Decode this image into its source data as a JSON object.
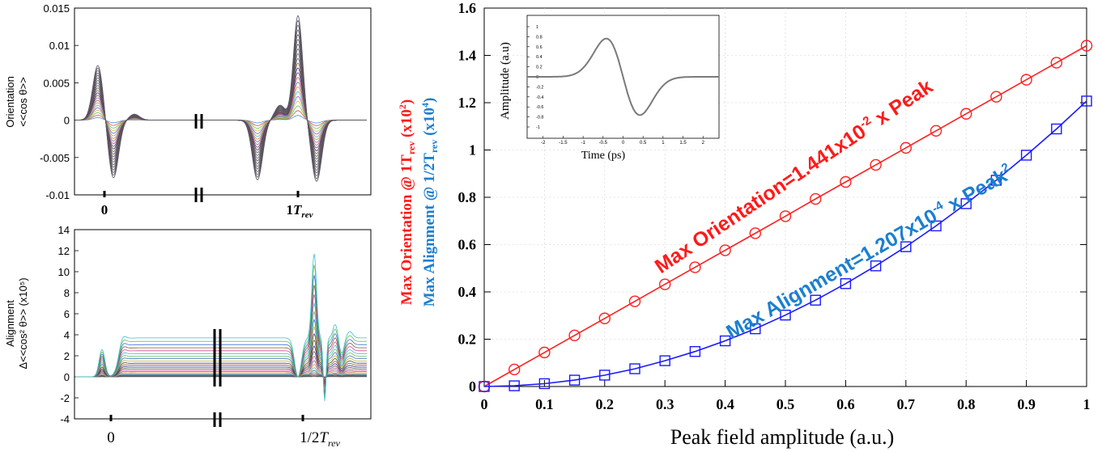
{
  "chart_data": [
    {
      "type": "line",
      "panel": "orientation",
      "ylabel_line1": "Orientation",
      "ylabel_line2": "<<cos θ>>",
      "ylim": [
        -0.01,
        0.015
      ],
      "yticks": [
        "0.015",
        "0.01",
        "0.005",
        "0",
        "-0.005",
        "-0.01"
      ],
      "xtick_labels": [
        "0",
        "1",
        "T",
        "rev"
      ],
      "break_mark": "||"
    },
    {
      "type": "line",
      "panel": "alignment",
      "ylabel_line1": "Alignment",
      "ylabel_line2": "Δ<<cos² θ>> (x10⁵)",
      "ylim": [
        -4,
        14
      ],
      "yticks": [
        "14",
        "12",
        "10",
        "8",
        "6",
        "4",
        "2",
        "0",
        "-2",
        "-4"
      ],
      "xtick_labels": [
        "0",
        "1/2",
        "T",
        "rev"
      ],
      "break_mark": "||"
    },
    {
      "type": "line",
      "panel": "peak-field",
      "xlabel": "Peak field amplitude (a.u.)",
      "ylabel_red": "Max Orientation @ 1T",
      "ylabel_red_sub": "rev",
      "ylabel_red_tail": " (x10",
      "ylabel_red_sup": "2",
      "ylabel_red_close": ")",
      "ylabel_blue": "Max Alignment @ 1/2T",
      "ylabel_blue_sub": "rev",
      "ylabel_blue_tail": " (x10",
      "ylabel_blue_sup": "4",
      "ylabel_blue_close": ")",
      "xlim": [
        0,
        1
      ],
      "ylim": [
        0,
        1.6
      ],
      "xticks": [
        "0",
        "0.1",
        "0.2",
        "0.3",
        "0.4",
        "0.5",
        "0.6",
        "0.7",
        "0.8",
        "0.9",
        "1"
      ],
      "yticks": [
        "0",
        "0.2",
        "0.4",
        "0.6",
        "0.8",
        "1",
        "1.2",
        "1.4",
        "1.6"
      ],
      "x": [
        0,
        0.05,
        0.1,
        0.15,
        0.2,
        0.25,
        0.3,
        0.35,
        0.4,
        0.45,
        0.5,
        0.55,
        0.6,
        0.65,
        0.7,
        0.75,
        0.8,
        0.85,
        0.9,
        0.95,
        1
      ],
      "series": [
        {
          "color": "#ff2020",
          "marker": "circle",
          "values": [
            0,
            0.072,
            0.144,
            0.216,
            0.288,
            0.36,
            0.432,
            0.504,
            0.576,
            0.648,
            0.72,
            0.793,
            0.865,
            0.937,
            1.009,
            1.081,
            1.153,
            1.225,
            1.297,
            1.369,
            1.441
          ]
        },
        {
          "color": "#1a1aff",
          "marker": "square",
          "values": [
            0,
            0.003,
            0.012,
            0.027,
            0.048,
            0.075,
            0.109,
            0.148,
            0.193,
            0.244,
            0.302,
            0.365,
            0.435,
            0.51,
            0.591,
            0.679,
            0.773,
            0.872,
            0.978,
            1.089,
            1.207
          ]
        }
      ],
      "annotation_red": "Max Orientation=1.441x10",
      "annotation_red_sup": "-2",
      "annotation_red_tail": " x Peak",
      "annotation_blue": "Max Alignment=1.207x10",
      "annotation_blue_sup": "-4",
      "annotation_blue_tail": " x Peak",
      "annotation_blue_sup2": "2",
      "inset": {
        "xlabel": "Time (ps)",
        "ylabel": "Amplitude (a.u)",
        "xticks": [
          "-2",
          "-1.5",
          "-1",
          "-0.5",
          "0",
          "0.5",
          "1",
          "1.5",
          "2"
        ],
        "yticks": [
          "1",
          "0.8",
          "0.6",
          "0.4",
          "0.2",
          "0",
          "-0.2",
          "-0.4",
          "-0.6",
          "-0.8",
          "-1"
        ]
      }
    }
  ]
}
